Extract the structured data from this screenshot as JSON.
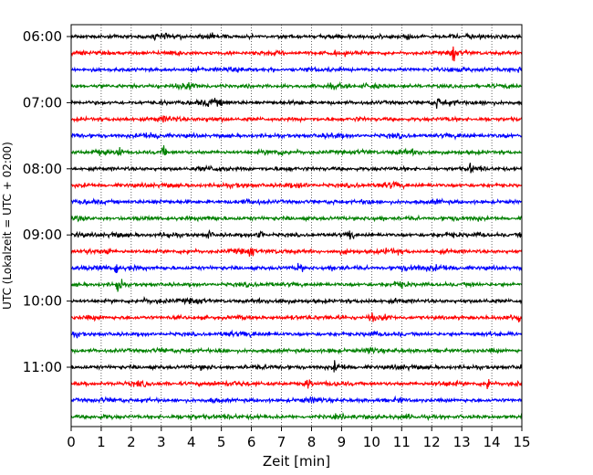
{
  "chart_data": {
    "type": "line",
    "subtype": "helicorder",
    "xlabel": "Zeit  [min]",
    "ylabel": "UTC (Lokalzeit = UTC + 02:00)",
    "xlim": [
      0,
      15
    ],
    "x_ticks": [
      "0",
      "1",
      "2",
      "3",
      "4",
      "5",
      "6",
      "7",
      "8",
      "9",
      "10",
      "11",
      "12",
      "13",
      "14",
      "15"
    ],
    "vertical_grid": "dotted",
    "trace_minutes": 15,
    "trace_count": 24,
    "first_trace_time": "06:00",
    "y_tick_labels": [
      "06:00",
      "07:00",
      "08:00",
      "09:00",
      "10:00",
      "11:00"
    ],
    "colors": [
      "#000000",
      "#ff0000",
      "#0000ff",
      "#008000"
    ],
    "events": [
      {
        "trace": 1,
        "minute": 12.7,
        "amplitude": 3.0
      },
      {
        "trace": 4,
        "minute": 12.2,
        "amplitude": 1.5
      },
      {
        "trace": 7,
        "minute": 1.6,
        "amplitude": 1.8
      },
      {
        "trace": 7,
        "minute": 3.1,
        "amplitude": 1.5
      },
      {
        "trace": 8,
        "minute": 13.3,
        "amplitude": 1.5
      },
      {
        "trace": 12,
        "minute": 4.6,
        "amplitude": 1.5
      },
      {
        "trace": 12,
        "minute": 6.3,
        "amplitude": 2.5
      },
      {
        "trace": 12,
        "minute": 9.3,
        "amplitude": 2.2
      },
      {
        "trace": 12,
        "minute": 15.0,
        "amplitude": 2.0
      },
      {
        "trace": 13,
        "minute": 1.2,
        "amplitude": 1.8
      },
      {
        "trace": 13,
        "minute": 6.0,
        "amplitude": 1.8
      },
      {
        "trace": 14,
        "minute": 1.5,
        "amplitude": 2.2
      },
      {
        "trace": 14,
        "minute": 7.6,
        "amplitude": 2.0
      },
      {
        "trace": 15,
        "minute": 1.6,
        "amplitude": 3.5
      },
      {
        "trace": 17,
        "minute": 10.0,
        "amplitude": 1.8
      },
      {
        "trace": 17,
        "minute": 14.9,
        "amplitude": 1.5
      },
      {
        "trace": 19,
        "minute": 5.0,
        "amplitude": 1.6
      },
      {
        "trace": 19,
        "minute": 9.9,
        "amplitude": 1.4
      },
      {
        "trace": 20,
        "minute": 8.8,
        "amplitude": 1.6
      },
      {
        "trace": 21,
        "minute": 7.9,
        "amplitude": 1.5
      },
      {
        "trace": 21,
        "minute": 13.9,
        "amplitude": 2.2
      }
    ]
  }
}
